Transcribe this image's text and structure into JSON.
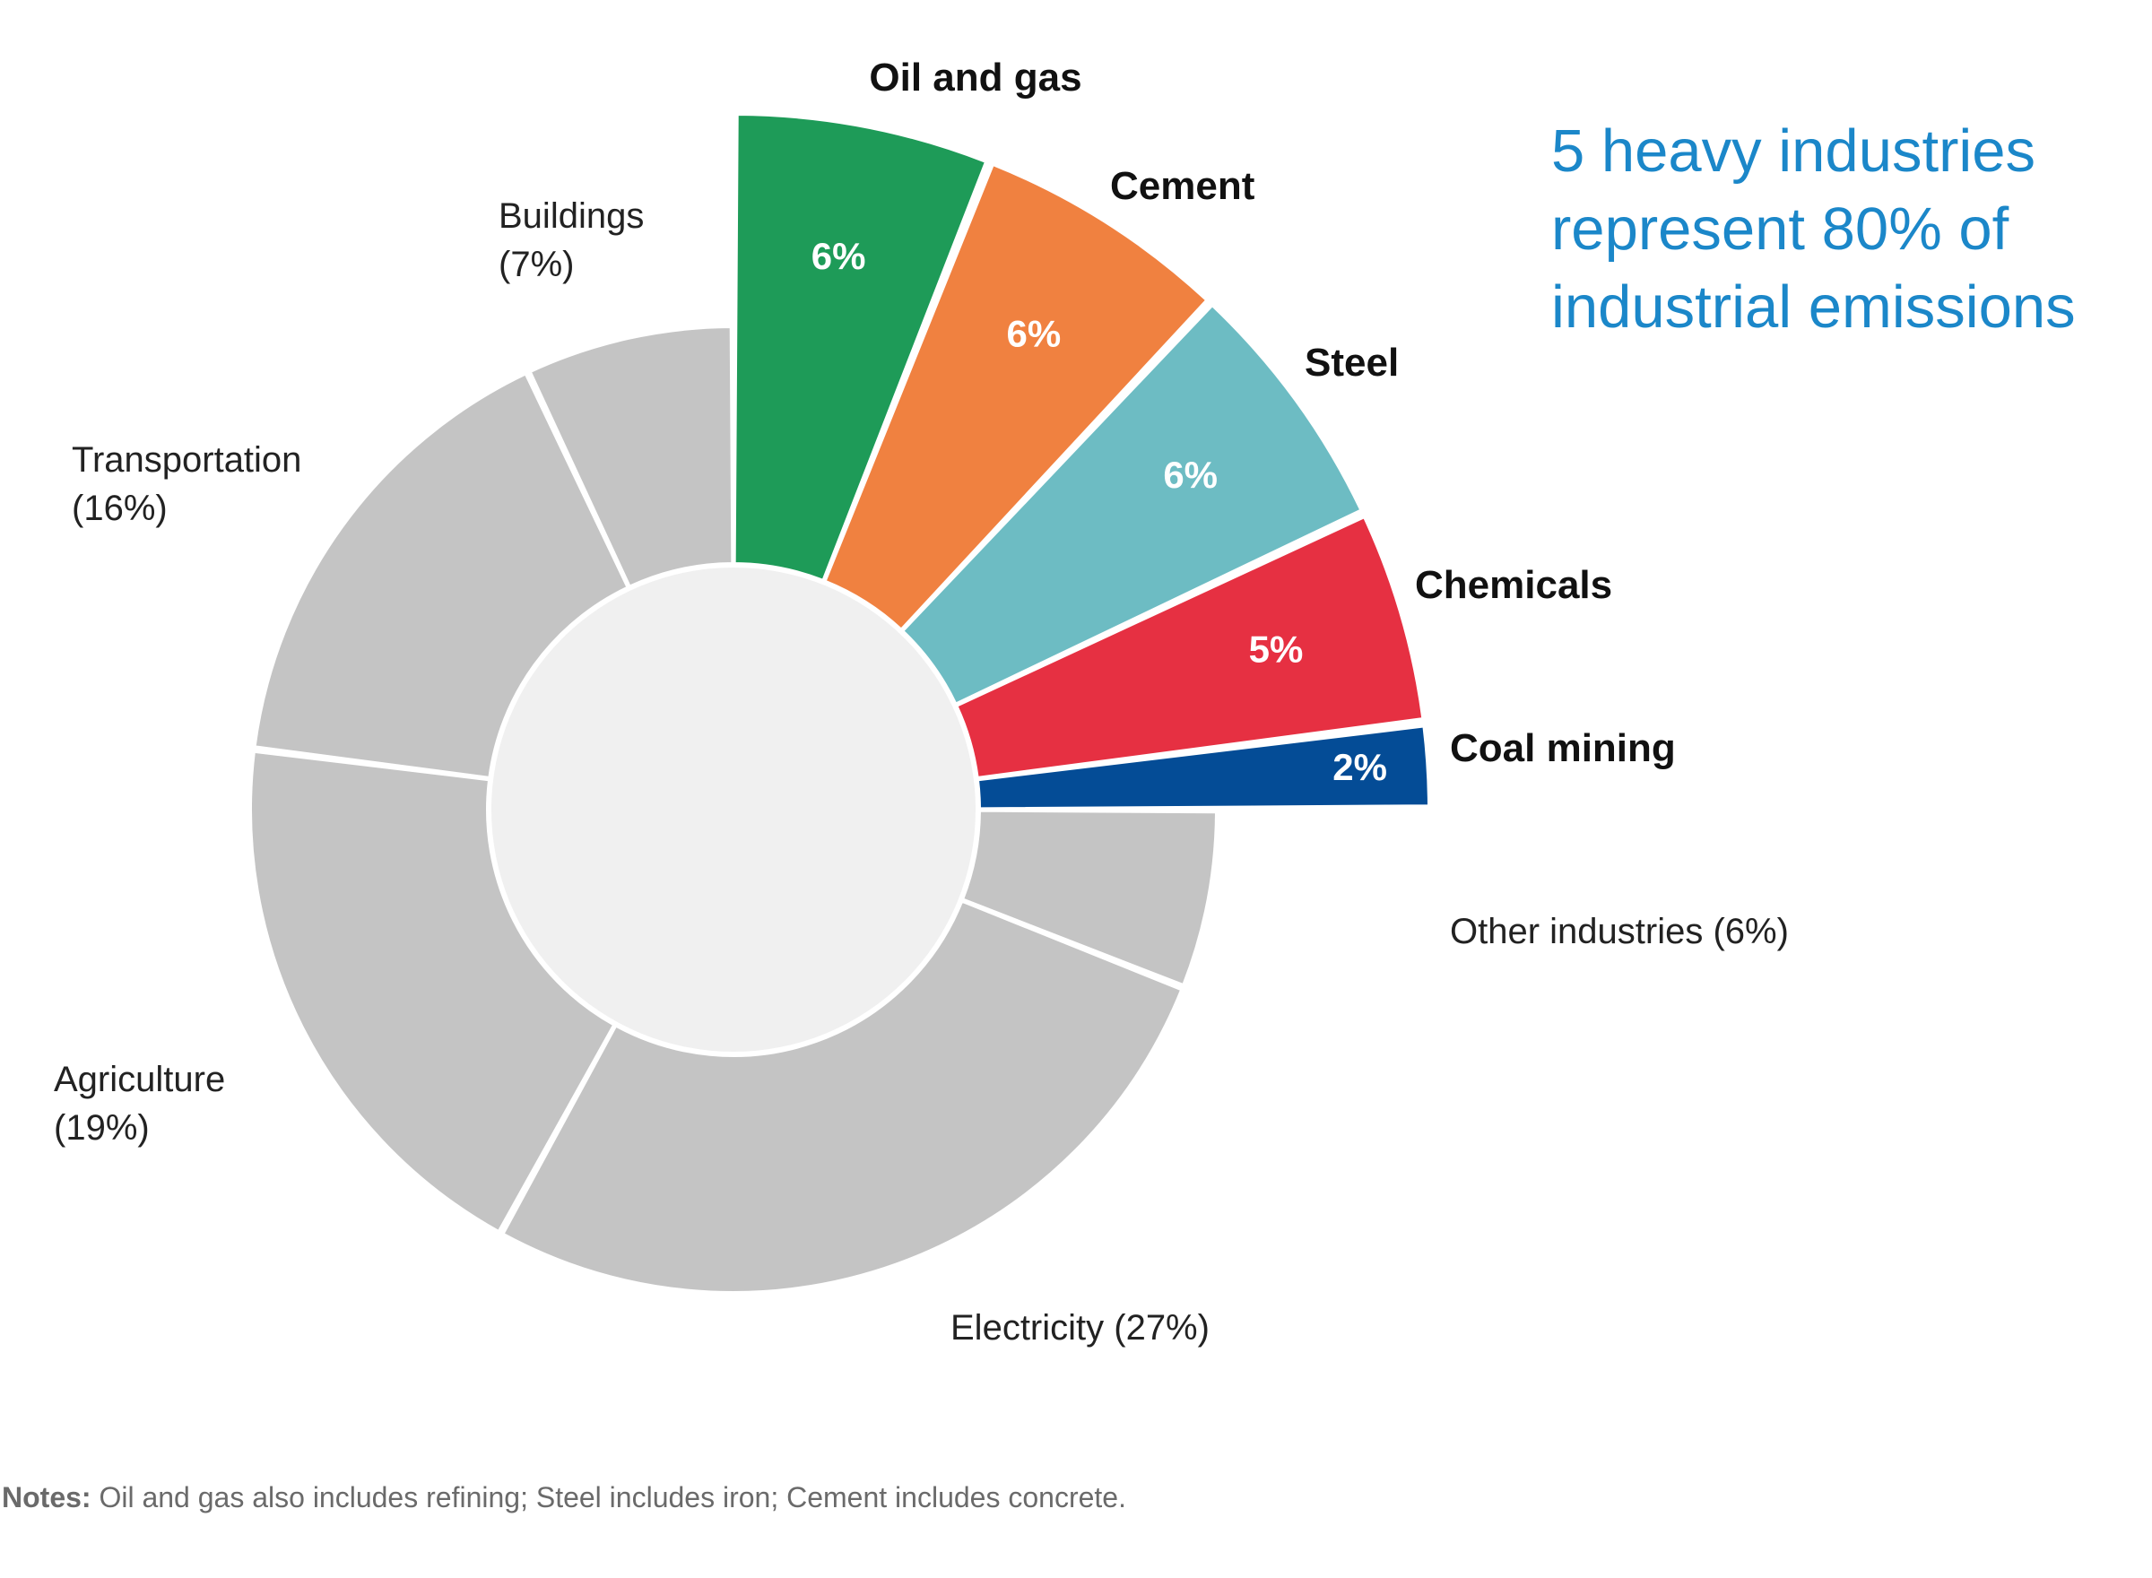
{
  "headline": {
    "lines": [
      "5 heavy industries",
      "represent 80% of",
      "industrial emissions"
    ]
  },
  "notes": {
    "label": "Notes:",
    "text": "Oil and gas also includes refining; Steel includes iron; Cement includes concrete."
  },
  "colors": {
    "background": "#ffffff",
    "gray": "#c4c4c4",
    "center": "#f0f0f0",
    "separator": "#ffffff",
    "headline": "#1b87c9",
    "label_dark": "#111111",
    "label_light": "#222222"
  },
  "chart_data": {
    "type": "pie",
    "variant": "exploded donut, highlighted slices extend outward",
    "order": "clockwise from 12 o'clock",
    "slices": [
      {
        "name": "Oil and gas",
        "value": 6,
        "label": "6%",
        "color": "#1e9b58",
        "highlight": true
      },
      {
        "name": "Cement",
        "value": 6,
        "label": "6%",
        "color": "#f08140",
        "highlight": true
      },
      {
        "name": "Steel",
        "value": 6,
        "label": "6%",
        "color": "#6dbcc3",
        "highlight": true
      },
      {
        "name": "Chemicals",
        "value": 5,
        "label": "5%",
        "color": "#e63042",
        "highlight": true
      },
      {
        "name": "Coal mining",
        "value": 2,
        "label": "2%",
        "color": "#044c96",
        "highlight": true
      },
      {
        "name": "Other industries",
        "value": 6,
        "label": "Other industries (6%)",
        "color": "#c4c4c4",
        "highlight": false
      },
      {
        "name": "Electricity",
        "value": 27,
        "label": "Electricity (27%)",
        "color": "#c4c4c4",
        "highlight": false
      },
      {
        "name": "Agriculture",
        "value": 19,
        "label": "(19%)",
        "color": "#c4c4c4",
        "highlight": false
      },
      {
        "name": "Transportation",
        "value": 16,
        "label": "(16%)",
        "color": "#c4c4c4",
        "highlight": false
      },
      {
        "name": "Buildings",
        "value": 7,
        "label": "(7%)",
        "color": "#c4c4c4",
        "highlight": false
      }
    ]
  }
}
